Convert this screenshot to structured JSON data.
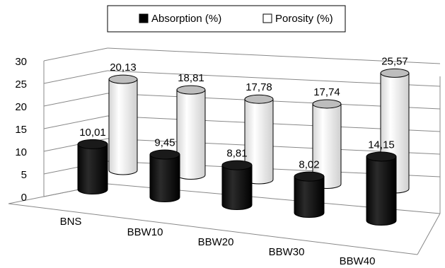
{
  "chart_data": {
    "type": "bar",
    "shape": "3d-cylinder",
    "categories": [
      "BNS",
      "BBW10",
      "BBW20",
      "BBW30",
      "BBW40"
    ],
    "series": [
      {
        "name": "Absorption (%)",
        "values": [
          10.01,
          9.45,
          8.81,
          8.02,
          14.15
        ],
        "labels": [
          "10,01",
          "9,45",
          "8,81",
          "8,02",
          "14,15"
        ],
        "color": "#111111"
      },
      {
        "name": "Porosity (%)",
        "values": [
          20.13,
          18.81,
          17.78,
          17.74,
          25.57
        ],
        "labels": [
          "20,13",
          "18,81",
          "17,78",
          "17,74",
          "25,57"
        ],
        "color": "#f2f2f2"
      }
    ],
    "ylim": [
      0,
      30
    ],
    "yticks": [
      "0",
      "5",
      "10",
      "15",
      "20",
      "25",
      "30"
    ],
    "grid": true,
    "legend_position": "top"
  }
}
